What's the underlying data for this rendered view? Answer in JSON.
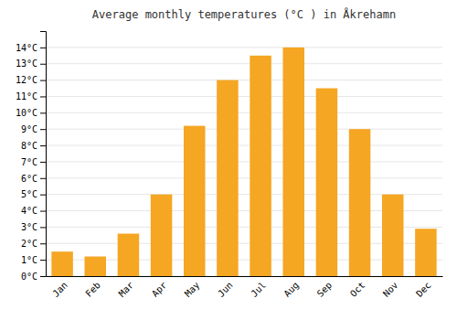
{
  "chart_data": {
    "type": "bar",
    "title": "Average monthly temperatures (°C ) in Åkrehamn",
    "categories": [
      "Jan",
      "Feb",
      "Mar",
      "Apr",
      "May",
      "Jun",
      "Jul",
      "Aug",
      "Sep",
      "Oct",
      "Nov",
      "Dec"
    ],
    "values": [
      1.5,
      1.2,
      2.6,
      5.0,
      9.2,
      12.0,
      13.5,
      14.0,
      11.5,
      9.0,
      5.0,
      2.9
    ],
    "color": "#F5A623",
    "ylim": [
      0,
      15
    ],
    "yticks": [
      {
        "value": 0,
        "label": "0°C"
      },
      {
        "value": 1,
        "label": "1°C"
      },
      {
        "value": 2,
        "label": "2°C"
      },
      {
        "value": 3,
        "label": "3°C"
      },
      {
        "value": 4,
        "label": "4°C"
      },
      {
        "value": 5,
        "label": "5°C"
      },
      {
        "value": 6,
        "label": "6°C"
      },
      {
        "value": 7,
        "label": "7°C"
      },
      {
        "value": 8,
        "label": "8°C"
      },
      {
        "value": 9,
        "label": "9°C"
      },
      {
        "value": 10,
        "label": "10°C"
      },
      {
        "value": 11,
        "label": "11°C"
      },
      {
        "value": 12,
        "label": "12°C"
      },
      {
        "value": 13,
        "label": "13°C"
      },
      {
        "value": 14,
        "label": "14°C"
      }
    ],
    "grid": true
  }
}
